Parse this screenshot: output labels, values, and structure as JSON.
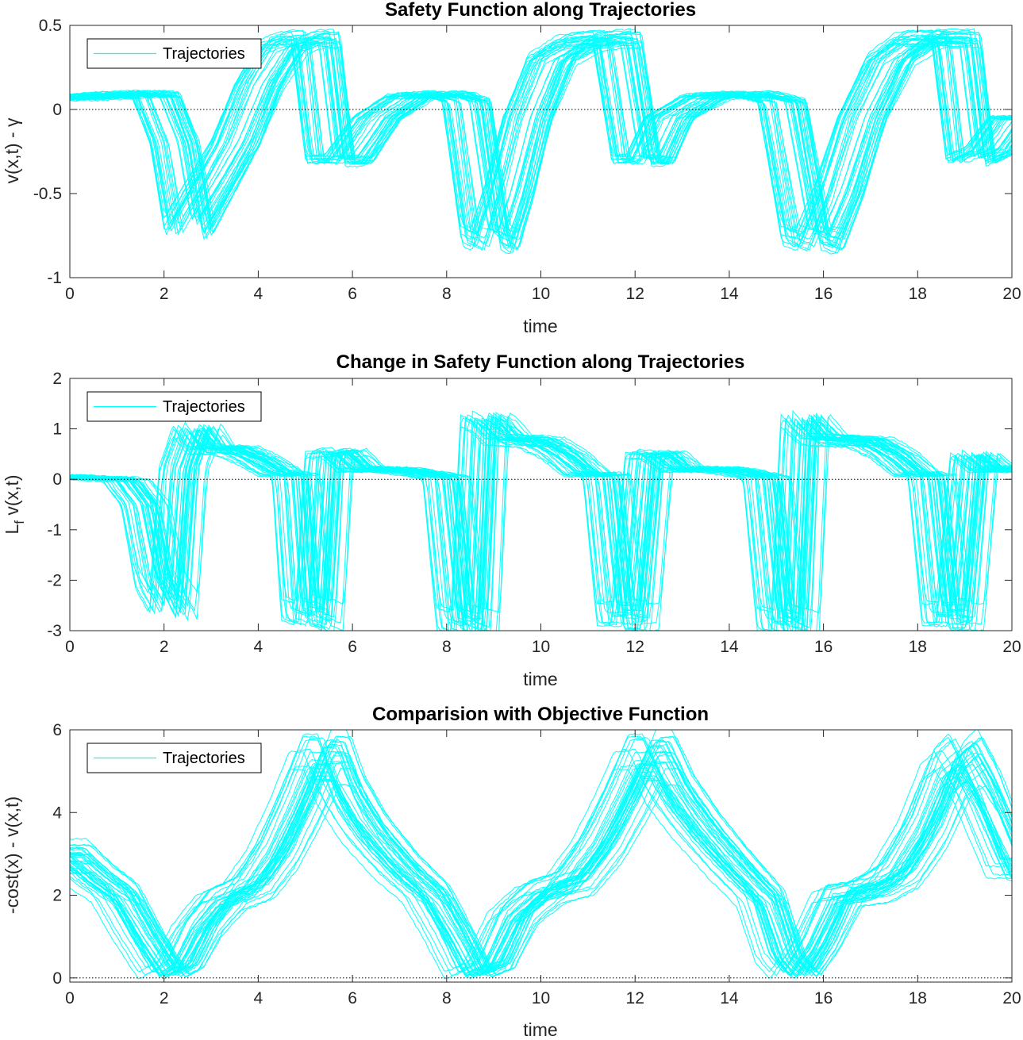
{
  "figure": {
    "background": "#ffffff",
    "trajectory_color": "#00FFFF",
    "zero_line_color": "#000000",
    "axis_color": "#262626"
  },
  "chart_data": [
    {
      "type": "line",
      "title": "Safety Function along Trajectories",
      "xlabel": "time",
      "ylabel": "v(x,t) - γ",
      "xlim": [
        0,
        20
      ],
      "ylim": [
        -1,
        0.5
      ],
      "xticks": [
        "0",
        "2",
        "4",
        "6",
        "8",
        "10",
        "12",
        "14",
        "16",
        "18",
        "20"
      ],
      "yticks": [
        "-1",
        "-0.5",
        "0",
        "0.5"
      ],
      "ytick_values": [
        -1,
        -0.5,
        0,
        0.5
      ],
      "legend": {
        "label": "Trajectories",
        "position": "top-left"
      },
      "reference_line": {
        "y": 0,
        "style": "dotted"
      },
      "series_count": 40,
      "series_spread": 0.12,
      "representative_series": {
        "x": [
          0,
          1.2,
          1.8,
          2.2,
          2.5,
          3.0,
          3.5,
          4.0,
          4.5,
          4.9,
          5.2,
          5.5,
          5.9,
          6.5,
          7.2,
          8.0,
          8.4,
          8.8,
          9.0,
          9.3,
          9.7,
          10.2,
          10.8,
          11.3,
          11.6,
          12.0,
          12.3,
          12.7,
          13.5,
          14.5,
          15.1,
          15.6,
          15.9,
          16.3,
          16.8,
          17.4,
          18.0,
          18.5,
          18.8,
          19.1,
          19.5,
          20.0
        ],
        "y": [
          0.07,
          0.09,
          0.09,
          -0.2,
          -0.7,
          -0.45,
          -0.2,
          0.15,
          0.38,
          0.42,
          0.42,
          -0.3,
          -0.3,
          -0.05,
          0.08,
          0.09,
          0.05,
          -0.75,
          -0.78,
          -0.5,
          -0.05,
          0.3,
          0.4,
          0.42,
          0.42,
          -0.3,
          -0.3,
          -0.05,
          0.08,
          0.09,
          0.05,
          -0.75,
          -0.78,
          -0.5,
          -0.05,
          0.3,
          0.42,
          0.42,
          0.42,
          -0.3,
          -0.25,
          -0.05
        ]
      }
    },
    {
      "type": "line",
      "title": "Change in Safety Function along Trajectories",
      "xlabel": "time",
      "ylabel": "L_f v(x,t)",
      "xlim": [
        0,
        20
      ],
      "ylim": [
        -3,
        2
      ],
      "xticks": [
        "0",
        "2",
        "4",
        "6",
        "8",
        "10",
        "12",
        "14",
        "16",
        "18",
        "20"
      ],
      "yticks": [
        "-3",
        "-2",
        "-1",
        "0",
        "1",
        "2"
      ],
      "ytick_values": [
        -3,
        -2,
        -1,
        0,
        1,
        2
      ],
      "legend": {
        "label": "Trajectories",
        "position": "top-left"
      },
      "reference_line": {
        "y": 0,
        "style": "dotted"
      },
      "series_count": 40,
      "series_spread": 0.12,
      "representative_series": {
        "x": [
          0,
          1.2,
          1.6,
          1.9,
          2.2,
          2.4,
          2.7,
          3.0,
          3.5,
          4.0,
          4.5,
          4.8,
          5.0,
          5.3,
          5.5,
          5.8,
          6.2,
          7.0,
          8.0,
          8.3,
          8.6,
          8.8,
          9.0,
          9.3,
          10.0,
          10.5,
          11.0,
          11.4,
          11.7,
          12.0,
          12.3,
          12.6,
          13.0,
          14.0,
          14.8,
          15.1,
          15.4,
          15.6,
          16.0,
          17.0,
          17.5,
          18.0,
          18.3,
          18.6,
          18.9,
          19.2,
          19.6,
          20.0
        ],
        "y": [
          0.05,
          0,
          -0.5,
          -2.0,
          -2.5,
          0.2,
          1.0,
          0.6,
          0.6,
          0.4,
          0.12,
          0.1,
          -2.6,
          -2.7,
          0.5,
          0.55,
          0.2,
          0.2,
          0.05,
          -2.8,
          -2.9,
          1.2,
          1.1,
          0.8,
          0.75,
          0.5,
          0.1,
          0.1,
          -2.7,
          -2.7,
          0.5,
          0.5,
          0.2,
          0.2,
          0.05,
          -2.8,
          -2.9,
          1.2,
          0.8,
          0.75,
          0.5,
          0.1,
          0.1,
          -2.7,
          -2.7,
          0.5,
          0.2,
          0.2
        ]
      }
    },
    {
      "type": "line",
      "title": "Comparision with Objective Function",
      "xlabel": "time",
      "ylabel": "-cost(x) - v(x,t)",
      "xlim": [
        0,
        20
      ],
      "ylim": [
        -0.1,
        6
      ],
      "xticks": [
        "0",
        "2",
        "4",
        "6",
        "8",
        "10",
        "12",
        "14",
        "16",
        "18",
        "20"
      ],
      "yticks": [
        "0",
        "2",
        "4",
        "6"
      ],
      "ytick_values": [
        0,
        2,
        4,
        6
      ],
      "legend": {
        "label": "Trajectories",
        "position": "top-left"
      },
      "reference_line": {
        "y": 0,
        "style": "dotted"
      },
      "series_count": 40,
      "series_spread": 0.3,
      "representative_series": {
        "x": [
          0,
          0.5,
          1.0,
          1.5,
          2.0,
          2.3,
          2.7,
          3.2,
          3.8,
          4.3,
          4.8,
          5.2,
          5.5,
          5.8,
          6.3,
          7.0,
          7.6,
          8.1,
          8.5,
          8.9,
          9.4,
          10.0,
          10.6,
          11.2,
          11.7,
          12.1,
          12.4,
          12.8,
          13.4,
          14.1,
          14.7,
          15.1,
          15.4,
          15.8,
          16.3,
          16.9,
          17.5,
          18.1,
          18.6,
          18.9,
          19.3,
          20.0
        ],
        "y": [
          2.9,
          2.4,
          2.0,
          1.0,
          0.1,
          0.3,
          1.2,
          1.9,
          2.2,
          3.0,
          4.2,
          5.3,
          5.3,
          4.4,
          3.5,
          2.6,
          2.0,
          1.0,
          0.1,
          0.3,
          1.5,
          2.1,
          2.3,
          3.2,
          4.3,
          5.3,
          5.3,
          4.4,
          3.5,
          2.6,
          1.9,
          0.5,
          0.1,
          0.8,
          2.0,
          2.1,
          2.5,
          3.6,
          5.0,
          5.3,
          4.5,
          2.6
        ]
      }
    }
  ]
}
